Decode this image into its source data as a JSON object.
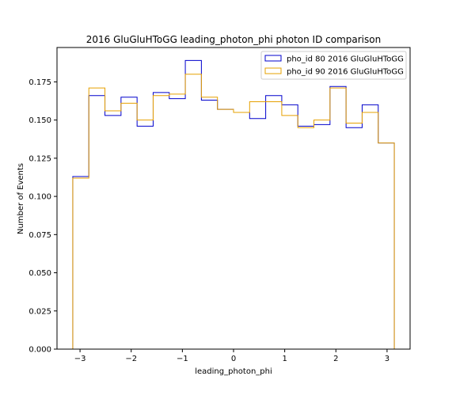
{
  "chart_data": {
    "type": "histogram",
    "title": "2016 GluGluHToGG leading_photon_phi photon ID comparison",
    "xlabel": "leading_photon_phi",
    "ylabel": "Number of Events",
    "xlim": [
      -3.45,
      3.45
    ],
    "ylim": [
      0.0,
      0.1975
    ],
    "xticks": [
      -3,
      -2,
      -1,
      0,
      1,
      2,
      3
    ],
    "yticks": [
      0.0,
      0.025,
      0.05,
      0.075,
      0.1,
      0.125,
      0.15,
      0.175
    ],
    "ytick_labels": [
      "0.000",
      "0.025",
      "0.050",
      "0.075",
      "0.100",
      "0.125",
      "0.150",
      "0.175"
    ],
    "xtick_labels": [
      "−3",
      "−2",
      "−1",
      "0",
      "1",
      "2",
      "3"
    ],
    "bin_edges": [
      -3.1416,
      -2.8274,
      -2.5133,
      -2.1991,
      -1.885,
      -1.5708,
      -1.2566,
      -0.9425,
      -0.6283,
      -0.3142,
      0.0,
      0.3142,
      0.6283,
      0.9425,
      1.2566,
      1.5708,
      1.885,
      2.1991,
      2.5133,
      2.8274,
      3.1416
    ],
    "series": [
      {
        "name": "pho_id 80 2016 GluGluHToGG",
        "color": "#0000cc",
        "values": [
          0.113,
          0.166,
          0.153,
          0.165,
          0.146,
          0.168,
          0.164,
          0.189,
          0.163,
          0.157,
          0.155,
          0.151,
          0.166,
          0.16,
          0.146,
          0.147,
          0.172,
          0.145,
          0.16,
          0.135
        ]
      },
      {
        "name": "pho_id 90 2016 GluGluHToGG",
        "color": "#e6a000",
        "values": [
          0.112,
          0.171,
          0.156,
          0.161,
          0.15,
          0.166,
          0.167,
          0.18,
          0.165,
          0.157,
          0.155,
          0.162,
          0.162,
          0.153,
          0.145,
          0.15,
          0.171,
          0.148,
          0.155,
          0.135
        ]
      }
    ],
    "legend_position": "top-right"
  }
}
